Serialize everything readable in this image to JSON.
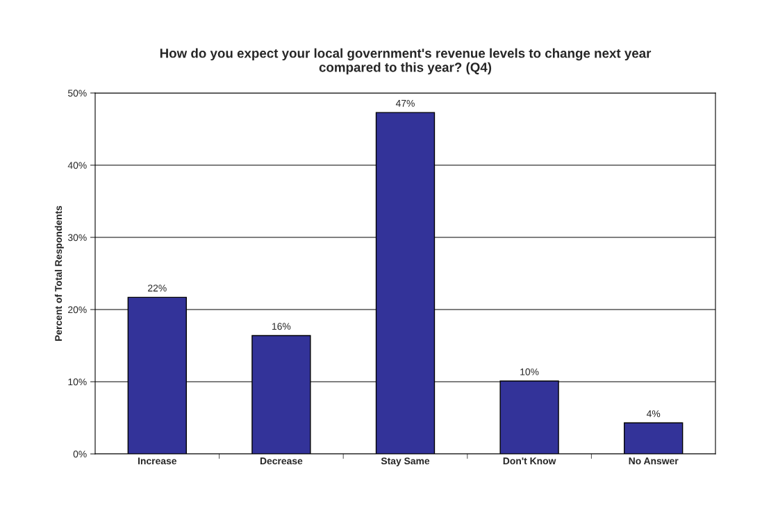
{
  "chart_data": {
    "type": "bar",
    "title": "How do you expect your local government's revenue levels to change next year\ncompared to this year? (Q4)",
    "ylabel": "Percent of Total Respondents",
    "categories": [
      "Increase",
      "Decrease",
      "Stay Same",
      "Don't Know",
      "No Answer"
    ],
    "values": [
      21.7,
      16.4,
      47.3,
      10.1,
      4.3
    ],
    "value_labels": [
      "22%",
      "16%",
      "47%",
      "10%",
      "4%"
    ],
    "color": "#333399",
    "ylim": [
      0,
      50
    ],
    "yticks": [
      {
        "value": 0,
        "label": "0%"
      },
      {
        "value": 10,
        "label": "10%"
      },
      {
        "value": 20,
        "label": "20%"
      },
      {
        "value": 30,
        "label": "30%"
      },
      {
        "value": 40,
        "label": "40%"
      },
      {
        "value": 50,
        "label": "50%"
      }
    ],
    "grid": "y",
    "legend": false
  }
}
